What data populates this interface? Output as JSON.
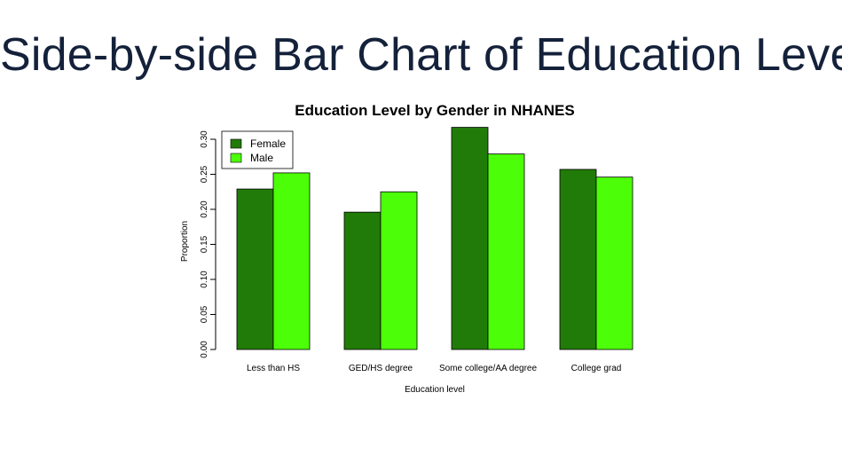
{
  "slide": {
    "title": "Side-by-side Bar Chart of Education Level"
  },
  "colors": {
    "female": "#217b08",
    "male": "#4cff09",
    "title_text": "#14213a",
    "axis": "#000000"
  },
  "chart_data": {
    "type": "bar",
    "title": "Education Level by Gender in NHANES",
    "xlabel": "Education level",
    "ylabel": "Proportion",
    "categories": [
      "Less than HS",
      "GED/HS degree",
      "Some college/AA degree",
      "College grad"
    ],
    "series": [
      {
        "name": "Female",
        "values": [
          0.229,
          0.196,
          0.317,
          0.257
        ]
      },
      {
        "name": "Male",
        "values": [
          0.252,
          0.225,
          0.279,
          0.246
        ]
      }
    ],
    "ylim": [
      0,
      0.3
    ],
    "yticks": [
      "0.00",
      "0.05",
      "0.10",
      "0.15",
      "0.20",
      "0.25",
      "0.30"
    ],
    "legend_position": "top-left",
    "grid": false
  }
}
